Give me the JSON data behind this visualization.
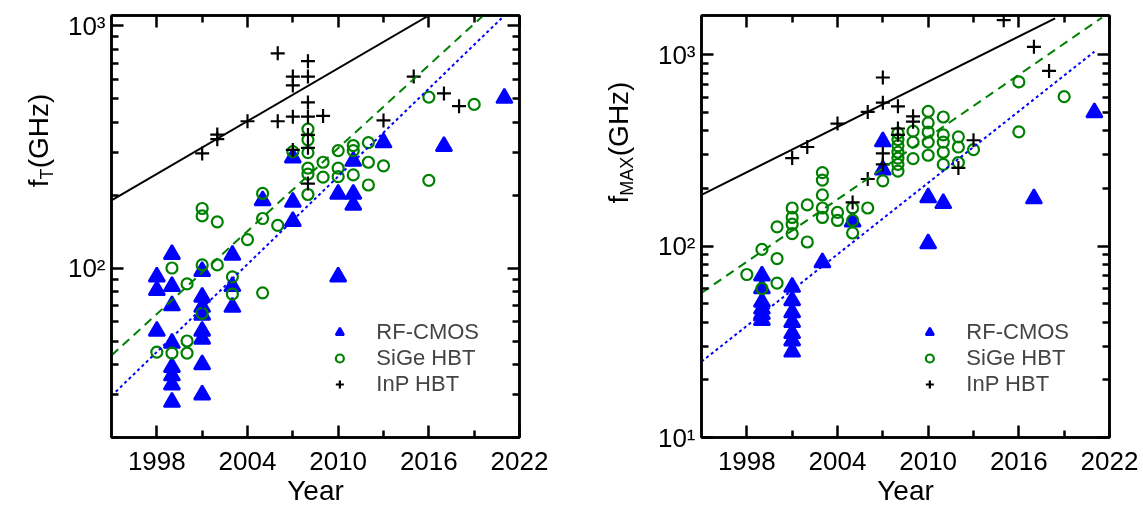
{
  "chart_data": [
    {
      "type": "scatter",
      "xlabel": "Year",
      "ylabel": "f$_{T}$(GHz)",
      "log": "y",
      "grid": false,
      "legend": "bottom right",
      "xlim": [
        1995,
        2022
      ],
      "ylim": [
        20,
        1100
      ],
      "xticks": [
        1998,
        {
          "value": 2001,
          "label": null
        },
        2004,
        {
          "value": 2007,
          "label": null
        },
        2010,
        {
          "value": 2013,
          "label": null
        },
        2016,
        {
          "value": 2019,
          "label": null
        },
        2022
      ],
      "yticks": [
        {
          "value": 20,
          "label": null
        },
        {
          "value": 30,
          "label": null
        },
        {
          "value": 40,
          "label": null
        },
        {
          "value": 50,
          "label": null
        },
        {
          "value": 60,
          "label": null
        },
        {
          "value": 70,
          "label": null
        },
        {
          "value": 80,
          "label": null
        },
        {
          "value": 90,
          "label": null
        },
        {
          "value": 100,
          "label": "10²"
        },
        {
          "value": 200,
          "label": null
        },
        {
          "value": 300,
          "label": null
        },
        {
          "value": 400,
          "label": null
        },
        {
          "value": 500,
          "label": null
        },
        {
          "value": 600,
          "label": null
        },
        {
          "value": 700,
          "label": null
        },
        {
          "value": 800,
          "label": null
        },
        {
          "value": 900,
          "label": null
        },
        {
          "value": 1000,
          "label": "10³"
        }
      ],
      "series": [
        {
          "name": "RF-CMOS",
          "type": "scatter",
          "marker": "triangle",
          "color": "#0000ff",
          "x": [
            1998,
            1998,
            1998,
            1999,
            1999,
            1999,
            1999,
            1999,
            1999,
            1999,
            1999,
            2001,
            2001,
            2001,
            2001,
            2001,
            2001,
            2001,
            2001,
            2003,
            2003,
            2003,
            2005,
            2007,
            2007,
            2007,
            2010,
            2010,
            2011,
            2011,
            2011,
            2013,
            2017,
            2021
          ],
          "values": [
            92,
            81,
            55,
            114,
            84,
            70,
            49,
            39,
            36,
            33,
            28,
            97,
            76,
            69,
            64,
            55,
            51,
            40,
            30,
            113,
            84,
            69,
            190,
            285,
            187,
            156,
            202,
            92,
            276,
            202,
            182,
            329,
            318,
            502
          ]
        },
        {
          "name": "SiGe HBT",
          "type": "scatter",
          "marker": "circle",
          "color": "#008000",
          "x": [
            1998,
            1999,
            1999,
            2000,
            2000,
            2000,
            2001,
            2001,
            2001,
            2001,
            2002,
            2002,
            2003,
            2003,
            2004,
            2005,
            2005,
            2005,
            2006,
            2007,
            2008,
            2008,
            2008,
            2008,
            2008,
            2008,
            2009,
            2009,
            2010,
            2010,
            2010,
            2011,
            2011,
            2011,
            2012,
            2012,
            2012,
            2013,
            2016,
            2016,
            2019
          ],
          "values": [
            45,
            100,
            44.6,
            86,
            50,
            44.6,
            176,
            164,
            103,
            65,
            155,
            103,
            92,
            78,
            131,
            203,
            160,
            79,
            150,
            302,
            374,
            338,
            299,
            258,
            244,
            201,
            273,
            237,
            305,
            258,
            238,
            320,
            305,
            242,
            329,
            273,
            220,
            264,
            507,
            230,
            473
          ]
        },
        {
          "name": "InP HBT",
          "type": "scatter",
          "marker": "cross",
          "color": "#000000",
          "x": [
            2001,
            2002,
            2002,
            2004,
            2006,
            2006,
            2007,
            2007,
            2007,
            2007,
            2008,
            2008,
            2008,
            2008,
            2008,
            2008,
            2008,
            2009,
            2013,
            2015,
            2017,
            2018
          ],
          "values": [
            297,
            355,
            340,
            403,
            768,
            403,
            616,
            566,
            421,
            307,
            713,
            616,
            482,
            421,
            354,
            313,
            223,
            424,
            406,
            616,
            525,
            465
          ]
        },
        {
          "type": "line",
          "line_style": "solid",
          "color": "#000000",
          "x": [
            1995,
            2016
          ],
          "values": [
            190,
            1100
          ]
        },
        {
          "type": "line",
          "line_style": "dashed",
          "color": "#008000",
          "x": [
            1995,
            2019.6
          ],
          "values": [
            43.6,
            1100
          ]
        },
        {
          "type": "line",
          "line_style": "dotted",
          "color": "#0000ff",
          "x": [
            1995,
            2021
          ],
          "values": [
            29.7,
            1100
          ]
        }
      ]
    },
    {
      "type": "scatter",
      "xlabel": "Year",
      "ylabel": "f$_{MAX}$(GHz)",
      "log": "y",
      "grid": false,
      "legend": "bottom right",
      "xlim": [
        1995,
        2022
      ],
      "ylim": [
        10,
        1600
      ],
      "xticks": [
        1998,
        {
          "value": 2001,
          "label": null
        },
        2004,
        {
          "value": 2007,
          "label": null
        },
        2010,
        {
          "value": 2013,
          "label": null
        },
        2016,
        {
          "value": 2019,
          "label": null
        },
        2022
      ],
      "yticks": [
        {
          "value": 10,
          "label": "10¹"
        },
        {
          "value": 20,
          "label": null
        },
        {
          "value": 30,
          "label": null
        },
        {
          "value": 40,
          "label": null
        },
        {
          "value": 50,
          "label": null
        },
        {
          "value": 60,
          "label": null
        },
        {
          "value": 70,
          "label": null
        },
        {
          "value": 80,
          "label": null
        },
        {
          "value": 90,
          "label": null
        },
        {
          "value": 100,
          "label": "10²"
        },
        {
          "value": 200,
          "label": null
        },
        {
          "value": 300,
          "label": null
        },
        {
          "value": 400,
          "label": null
        },
        {
          "value": 500,
          "label": null
        },
        {
          "value": 600,
          "label": null
        },
        {
          "value": 700,
          "label": null
        },
        {
          "value": 800,
          "label": null
        },
        {
          "value": 900,
          "label": null
        },
        {
          "value": 1000,
          "label": "10³"
        }
      ],
      "series": [
        {
          "name": "RF-CMOS",
          "type": "scatter",
          "marker": "triangle",
          "color": "#0000ff",
          "x": [
            1999,
            1999,
            1999,
            1999,
            1999,
            1999,
            2001,
            2001,
            2001,
            2001,
            2001,
            2001,
            2001,
            2003,
            2005,
            2007,
            2007,
            2010,
            2010,
            2011,
            2013,
            2017,
            2021
          ],
          "values": [
            70,
            60,
            51,
            47,
            44,
            41,
            61,
            52,
            45,
            40,
            35,
            32,
            28,
            82,
            134,
            351,
            250,
            179,
            103,
            167,
            null,
            177,
            498
          ]
        },
        {
          "name": "SiGe HBT",
          "type": "scatter",
          "marker": "circle",
          "color": "#008000",
          "x": [
            1998,
            1999,
            1999,
            2000,
            2000,
            2000,
            2001,
            2001,
            2001,
            2001,
            2002,
            2002,
            2003,
            2003,
            2003,
            2003,
            2003,
            2004,
            2004,
            2005,
            2005,
            2005,
            2006,
            2007,
            2008,
            2008,
            2008,
            2008,
            2008,
            2008,
            2008,
            2009,
            2009,
            2009,
            2010,
            2010,
            2010,
            2010,
            2010,
            2011,
            2011,
            2011,
            2011,
            2011,
            2012,
            2012,
            2012,
            2013,
            2016,
            2016,
            2019
          ],
          "values": [
            71,
            96,
            60,
            126,
            86,
            64,
            158,
            141,
            130,
            116,
            164,
            105,
            242,
            221,
            185,
            158,
            141,
            150,
            136,
            158,
            136,
            117,
            158,
            219,
            389,
            360,
            334,
            309,
            288,
            267,
            246,
            398,
            349,
            286,
            505,
            440,
            394,
            349,
            298,
            472,
            381,
            349,
            309,
            267,
            372,
            329,
            273,
            319,
            720,
            395,
            603
          ]
        },
        {
          "name": "InP HBT",
          "type": "scatter",
          "marker": "cross",
          "color": "#000000",
          "x": [
            2001,
            2002,
            2004,
            2005,
            2006,
            2006,
            2007,
            2007,
            2007,
            2007,
            2008,
            2008,
            2008,
            2009,
            2009,
            2012,
            2013,
            2015,
            2017,
            2018
          ],
          "values": [
            288,
            329,
            436,
            169,
            502,
            224,
            759,
            561,
            305,
            267,
            537,
            411,
            381,
            476,
            446,
            256,
            357,
            1512,
            1098,
            822
          ]
        },
        {
          "type": "line",
          "line_style": "solid",
          "color": "#000000",
          "x": [
            1995,
            2018.4
          ],
          "values": [
            185,
            1546
          ]
        },
        {
          "type": "line",
          "line_style": "dashed",
          "color": "#008000",
          "x": [
            1995,
            2021.5
          ],
          "values": [
            56.9,
            1560
          ]
        },
        {
          "type": "line",
          "line_style": "dotted",
          "color": "#0000ff",
          "x": [
            1995,
            2021
          ],
          "values": [
            24.9,
            1036
          ]
        }
      ]
    }
  ]
}
